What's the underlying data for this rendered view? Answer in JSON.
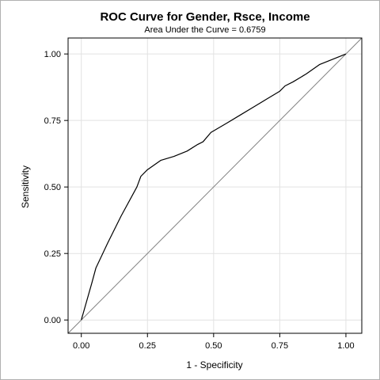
{
  "chart_data": {
    "type": "line",
    "title": "ROC Curve for Gender, Rsce, Income",
    "subtitle": "Area Under the Curve = 0.6759",
    "xlabel": "1 - Specificity",
    "ylabel": "Sensitivity",
    "xlim": [
      -0.05,
      1.06
    ],
    "ylim": [
      -0.05,
      1.06
    ],
    "x_ticks": [
      "0.00",
      "0.25",
      "0.50",
      "0.75",
      "1.00"
    ],
    "y_ticks": [
      "0.00",
      "0.25",
      "0.50",
      "0.75",
      "1.00"
    ],
    "tick_values": [
      0,
      0.25,
      0.5,
      0.75,
      1.0
    ],
    "grid": true,
    "legend": "none",
    "colors": {
      "curve": "#000000",
      "reference": "#808080",
      "grid": "#e2e2e2",
      "axis": "#000000"
    },
    "series": [
      {
        "x": [
          0.0,
          0.04,
          0.055,
          0.1,
          0.15,
          0.21,
          0.225,
          0.25,
          0.3,
          0.35,
          0.4,
          0.44,
          0.46,
          0.49,
          0.55,
          0.6,
          0.65,
          0.7,
          0.75,
          0.77,
          0.8,
          0.85,
          0.9,
          1.0
        ],
        "y": [
          0.0,
          0.14,
          0.195,
          0.29,
          0.39,
          0.5,
          0.54,
          0.565,
          0.6,
          0.615,
          0.635,
          0.66,
          0.67,
          0.705,
          0.74,
          0.77,
          0.8,
          0.83,
          0.86,
          0.88,
          0.895,
          0.925,
          0.96,
          1.0
        ]
      },
      {
        "x": [
          -0.05,
          1.06
        ],
        "y": [
          -0.05,
          1.06
        ]
      }
    ]
  }
}
